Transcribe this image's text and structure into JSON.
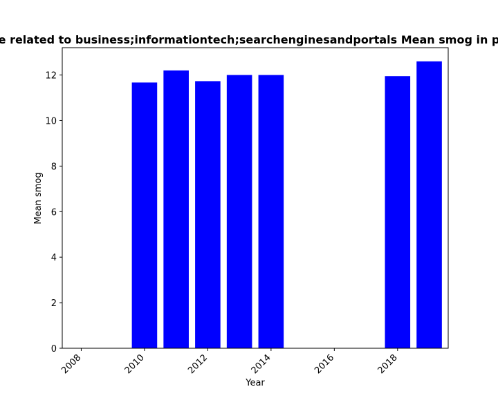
{
  "chart_data": {
    "type": "bar",
    "title": "e related to business;informationtech;searchenginesandportals Mean smog in p",
    "xlabel": "Year",
    "ylabel": "Mean smog",
    "x": [
      2010,
      2011,
      2012,
      2013,
      2014,
      2018,
      2019
    ],
    "values": [
      11.67,
      12.2,
      11.73,
      12.0,
      12.0,
      11.95,
      12.6
    ],
    "xlim": [
      2007.4,
      2019.6
    ],
    "ylim": [
      0,
      13.2
    ],
    "xticks": [
      2008,
      2010,
      2012,
      2014,
      2016,
      2018
    ],
    "yticks": [
      0,
      2,
      4,
      6,
      8,
      10,
      12
    ],
    "bar_color": "#0000ff",
    "grid": false,
    "legend": "none"
  }
}
